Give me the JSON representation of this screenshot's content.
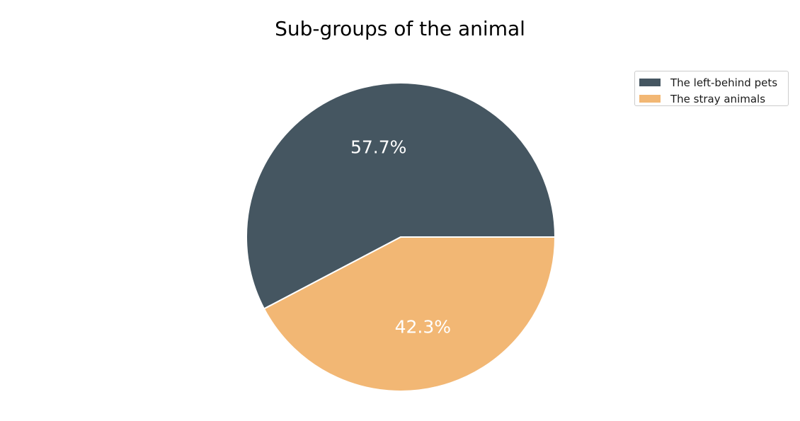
{
  "chart_data": {
    "type": "pie",
    "title": "Sub-groups of the animal",
    "slices": [
      {
        "label": "The left-behind pets",
        "value": 57.7,
        "value_label": "57.7%",
        "color": "#455661"
      },
      {
        "label": "The stray animals",
        "value": 42.3,
        "value_label": "42.3%",
        "color": "#f2b774"
      }
    ],
    "start_angle_deg": 0,
    "direction": "counterclockwise",
    "slice_edge_color": "#ffffff",
    "value_label_color": "#ffffff",
    "legend_placement": "top-right"
  }
}
